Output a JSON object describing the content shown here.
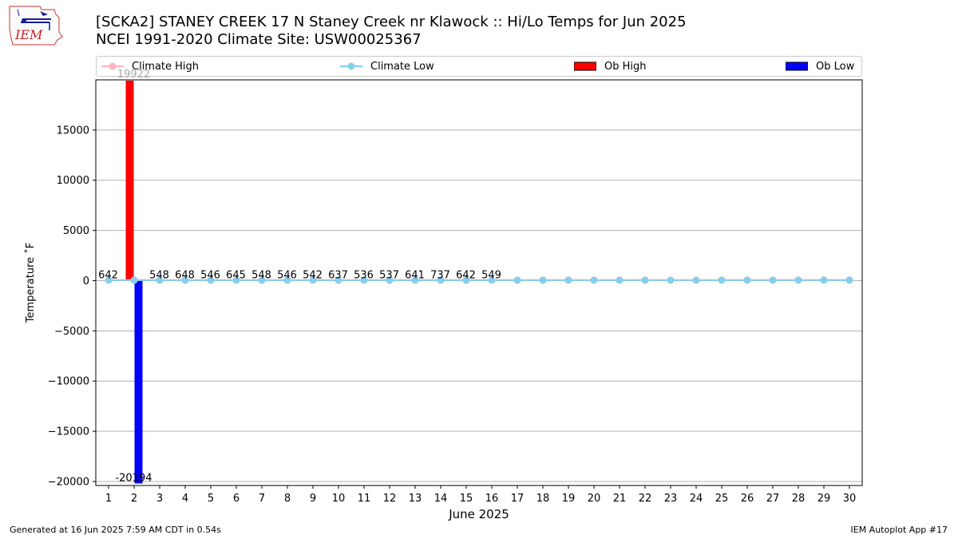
{
  "header": {
    "title_line1": "[SCKA2] STANEY CREEK 17 N Staney Creek nr Klawock :: Hi/Lo Temps for Jun 2025",
    "title_line2": "NCEI 1991-2020 Climate Site: USW00025367",
    "logo_text": "IEM"
  },
  "legend": [
    {
      "label": "Climate High",
      "color": "#ffb6c1",
      "kind": "line"
    },
    {
      "label": "Climate Low",
      "color": "#87ceeb",
      "kind": "line"
    },
    {
      "label": "Ob High",
      "color": "#ff0000",
      "kind": "bar"
    },
    {
      "label": "Ob Low",
      "color": "#0000ff",
      "kind": "bar"
    }
  ],
  "footer": {
    "left": "Generated at 16 Jun 2025 7:59 AM CDT in 0.54s",
    "right": "IEM Autoplot App #17"
  },
  "chart_data": {
    "type": "bar",
    "xlabel": "June 2025",
    "ylabel": "Temperature ˚F",
    "ylim": [
      -20400,
      20000
    ],
    "yticks": [
      -20000,
      -15000,
      -10000,
      -5000,
      0,
      5000,
      10000,
      15000
    ],
    "grid": "horizontal",
    "legend_position": "top",
    "x": [
      1,
      2,
      3,
      4,
      5,
      6,
      7,
      8,
      9,
      10,
      11,
      12,
      13,
      14,
      15,
      16,
      17,
      18,
      19,
      20,
      21,
      22,
      23,
      24,
      25,
      26,
      27,
      28,
      29,
      30
    ],
    "series": [
      {
        "name": "Climate High",
        "type": "line",
        "color": "#ffb6c1",
        "values": [
          58,
          58,
          58,
          59,
          59,
          59,
          59,
          60,
          60,
          60,
          60,
          60,
          61,
          61,
          61,
          61,
          61,
          62,
          62,
          62,
          62,
          62,
          63,
          63,
          63,
          63,
          63,
          63,
          64,
          64
        ]
      },
      {
        "name": "Climate Low",
        "type": "line",
        "color": "#87ceeb",
        "values": [
          44,
          45,
          45,
          45,
          45,
          45,
          46,
          46,
          46,
          46,
          46,
          46,
          47,
          47,
          47,
          47,
          47,
          47,
          48,
          48,
          48,
          48,
          48,
          48,
          49,
          49,
          49,
          49,
          49,
          49
        ]
      },
      {
        "name": "Ob High",
        "type": "bar",
        "color": "#ff0000",
        "values": [
          null,
          19922,
          null,
          null,
          null,
          null,
          null,
          null,
          null,
          null,
          null,
          null,
          null,
          null,
          null,
          null,
          null,
          null,
          null,
          null,
          null,
          null,
          null,
          null,
          null,
          null,
          null,
          null,
          null,
          null
        ]
      },
      {
        "name": "Ob Low",
        "type": "bar",
        "color": "#0000ff",
        "values": [
          null,
          -20194,
          null,
          null,
          null,
          null,
          null,
          null,
          null,
          null,
          null,
          null,
          null,
          null,
          null,
          null,
          null,
          null,
          null,
          null,
          null,
          null,
          null,
          null,
          null,
          null,
          null,
          null,
          null,
          null
        ]
      }
    ],
    "data_labels": [
      {
        "x": 1,
        "text": "642"
      },
      {
        "x": 2,
        "text": "19922"
      },
      {
        "x": 2,
        "text": "-20194"
      },
      {
        "x": 3,
        "text": "548"
      },
      {
        "x": 4,
        "text": "648"
      },
      {
        "x": 5,
        "text": "546"
      },
      {
        "x": 6,
        "text": "645"
      },
      {
        "x": 7,
        "text": "548"
      },
      {
        "x": 8,
        "text": "546"
      },
      {
        "x": 9,
        "text": "542"
      },
      {
        "x": 10,
        "text": "637"
      },
      {
        "x": 11,
        "text": "536"
      },
      {
        "x": 12,
        "text": "537"
      },
      {
        "x": 13,
        "text": "641"
      },
      {
        "x": 14,
        "text": "737"
      },
      {
        "x": 15,
        "text": "642"
      },
      {
        "x": 16,
        "text": "549"
      }
    ]
  }
}
